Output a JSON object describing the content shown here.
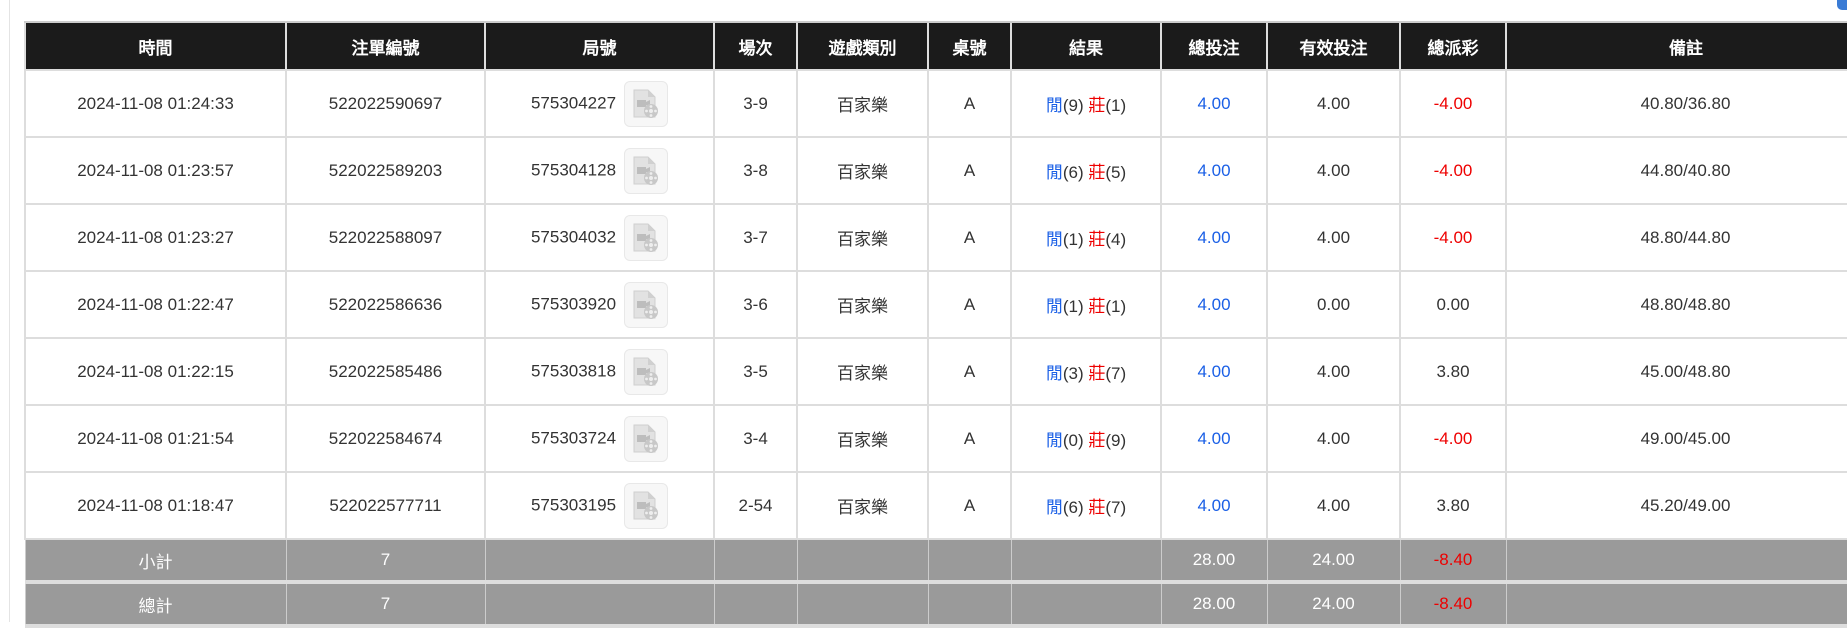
{
  "colors": {
    "header_bg": "#1b1b1b",
    "blue": "#1a5fe6",
    "red": "#ee0000",
    "summary_bg": "#9a9a9a"
  },
  "headers": [
    "時間",
    "注單編號",
    "局號",
    "場次",
    "遊戲類別",
    "桌號",
    "結果",
    "總投注",
    "有效投注",
    "總派彩",
    "備註"
  ],
  "rows": [
    {
      "time": "2024-11-08 01:24:33",
      "order": "522022590697",
      "round": "575304227",
      "session": "3-9",
      "game": "百家樂",
      "table": "A",
      "r1": "閒",
      "r1n": "(9)",
      "r2": "莊",
      "r2n": "(1)",
      "bet": "4.00",
      "valid": "4.00",
      "payout": "-4.00",
      "payout_neg": true,
      "note": "40.80/36.80"
    },
    {
      "time": "2024-11-08 01:23:57",
      "order": "522022589203",
      "round": "575304128",
      "session": "3-8",
      "game": "百家樂",
      "table": "A",
      "r1": "閒",
      "r1n": "(6)",
      "r2": "莊",
      "r2n": "(5)",
      "bet": "4.00",
      "valid": "4.00",
      "payout": "-4.00",
      "payout_neg": true,
      "note": "44.80/40.80"
    },
    {
      "time": "2024-11-08 01:23:27",
      "order": "522022588097",
      "round": "575304032",
      "session": "3-7",
      "game": "百家樂",
      "table": "A",
      "r1": "閒",
      "r1n": "(1)",
      "r2": "莊",
      "r2n": "(4)",
      "bet": "4.00",
      "valid": "4.00",
      "payout": "-4.00",
      "payout_neg": true,
      "note": "48.80/44.80"
    },
    {
      "time": "2024-11-08 01:22:47",
      "order": "522022586636",
      "round": "575303920",
      "session": "3-6",
      "game": "百家樂",
      "table": "A",
      "r1": "閒",
      "r1n": "(1)",
      "r2": "莊",
      "r2n": "(1)",
      "bet": "4.00",
      "valid": "0.00",
      "payout": "0.00",
      "payout_neg": false,
      "note": "48.80/48.80"
    },
    {
      "time": "2024-11-08 01:22:15",
      "order": "522022585486",
      "round": "575303818",
      "session": "3-5",
      "game": "百家樂",
      "table": "A",
      "r1": "閒",
      "r1n": "(3)",
      "r2": "莊",
      "r2n": "(7)",
      "bet": "4.00",
      "valid": "4.00",
      "payout": "3.80",
      "payout_neg": false,
      "note": "45.00/48.80"
    },
    {
      "time": "2024-11-08 01:21:54",
      "order": "522022584674",
      "round": "575303724",
      "session": "3-4",
      "game": "百家樂",
      "table": "A",
      "r1": "閒",
      "r1n": "(0)",
      "r2": "莊",
      "r2n": "(9)",
      "bet": "4.00",
      "valid": "4.00",
      "payout": "-4.00",
      "payout_neg": true,
      "note": "49.00/45.00"
    },
    {
      "time": "2024-11-08 01:18:47",
      "order": "522022577711",
      "round": "575303195",
      "session": "2-54",
      "game": "百家樂",
      "table": "A",
      "r1": "閒",
      "r1n": "(6)",
      "r2": "莊",
      "r2n": "(7)",
      "bet": "4.00",
      "valid": "4.00",
      "payout": "3.80",
      "payout_neg": false,
      "note": "45.20/49.00"
    }
  ],
  "subtotal": {
    "label": "小計",
    "count": "7",
    "bet": "28.00",
    "valid": "24.00",
    "payout": "-8.40"
  },
  "total": {
    "label": "總計",
    "count": "7",
    "bet": "28.00",
    "valid": "24.00",
    "payout": "-8.40"
  },
  "icons": {
    "replay": "video-file-icon"
  }
}
